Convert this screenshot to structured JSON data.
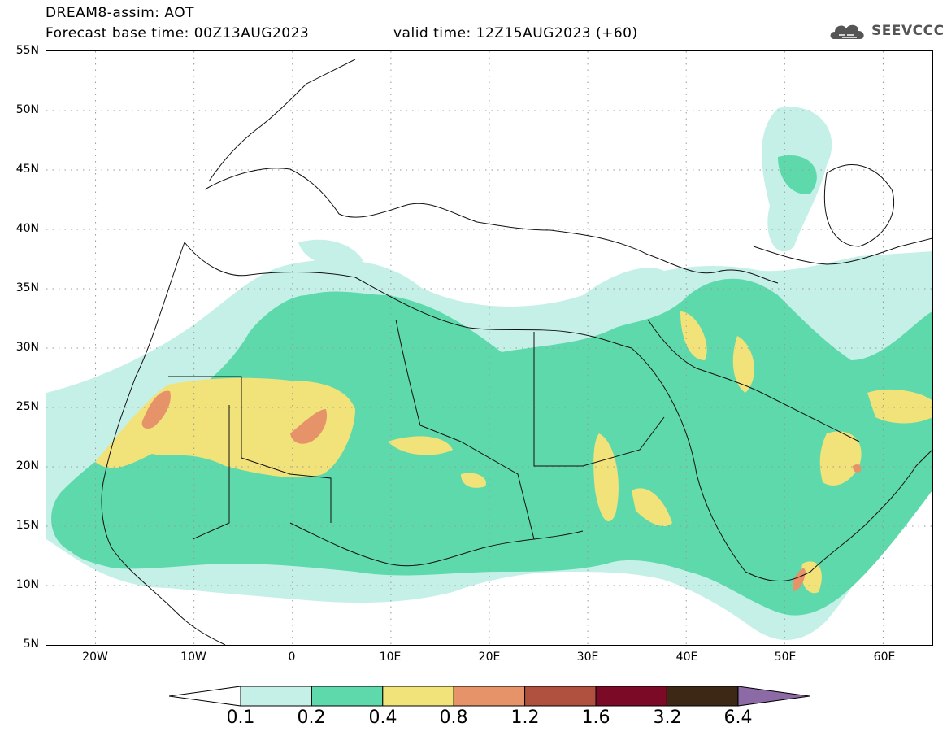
{
  "header": {
    "title": "DREAM8-assim: AOT",
    "base_time": "Forecast base time: 00Z13AUG2023",
    "valid_time": "valid time: 12Z15AUG2023 (+60)"
  },
  "logo": {
    "text": "SEEVCCC",
    "icon": "cloud-logo-icon"
  },
  "map": {
    "variable": "AOT",
    "lon_range": [
      -25,
      65
    ],
    "lat_range": [
      5,
      55
    ],
    "grid": "dotted",
    "lat_ticks": [
      "55N",
      "50N",
      "45N",
      "40N",
      "35N",
      "30N",
      "25N",
      "20N",
      "15N",
      "10N",
      "5N"
    ],
    "lon_ticks": [
      "20W",
      "10W",
      "0",
      "10E",
      "20E",
      "30E",
      "40E",
      "50E",
      "60E"
    ]
  },
  "colorbar": {
    "labels": [
      "0.1",
      "0.2",
      "0.4",
      "0.8",
      "1.2",
      "1.6",
      "3.2",
      "6.4"
    ],
    "colors": [
      "#c4f0e7",
      "#5dd9ac",
      "#f2e27a",
      "#e6936a",
      "#b0503f",
      "#7a0a25",
      "#3d2816",
      "#8c6aa6"
    ],
    "extend": "both"
  }
}
